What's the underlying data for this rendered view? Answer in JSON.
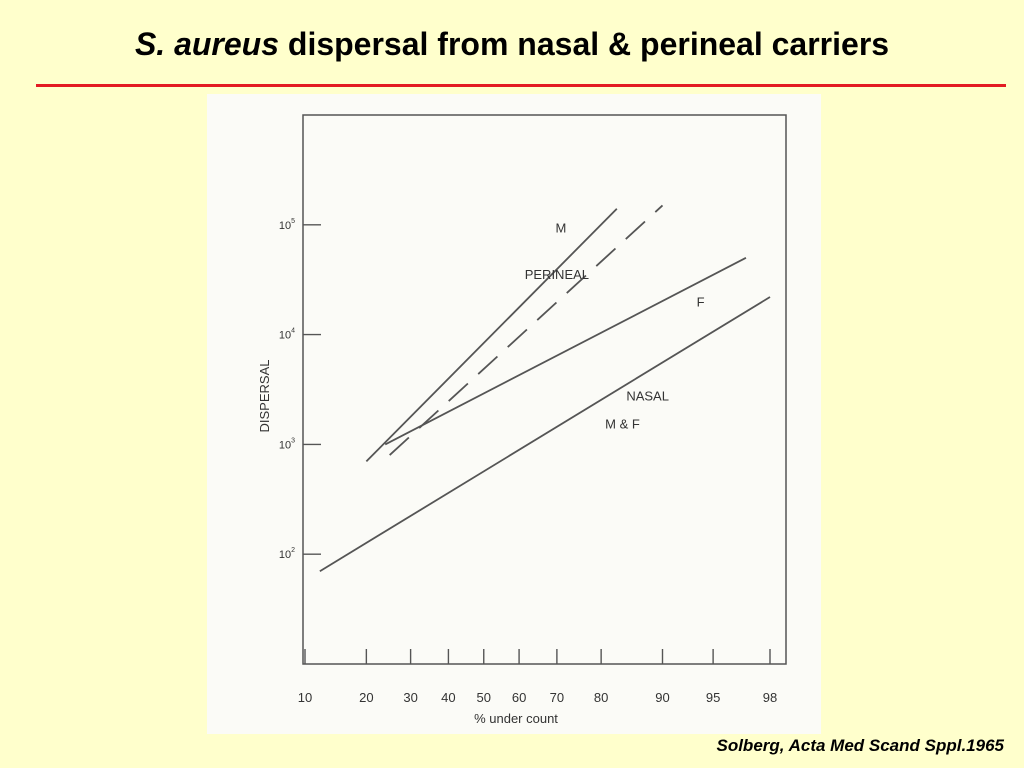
{
  "slide": {
    "title_italic": "S. aureus",
    "title_rest": " dispersal from nasal & perineal carriers",
    "citation": "Solberg, Acta Med Scand Sppl.1965",
    "rule_color": "#e31b23",
    "background_color": "#ffffcc"
  },
  "chart_data": {
    "type": "line",
    "title": "",
    "xlabel": "% under count",
    "ylabel": "DISPERSAL",
    "x_scale": "probability",
    "y_scale": "log",
    "x_ticks": [
      10,
      20,
      30,
      40,
      50,
      60,
      70,
      80,
      90,
      95,
      98
    ],
    "y_ticks": [
      {
        "value": 100,
        "base": "10",
        "exp": "2"
      },
      {
        "value": 1000,
        "base": "10",
        "exp": "3"
      },
      {
        "value": 10000,
        "base": "10",
        "exp": "4"
      },
      {
        "value": 100000,
        "base": "10",
        "exp": "5"
      }
    ],
    "xlim": [
      10,
      98
    ],
    "ylim": [
      10,
      1000000
    ],
    "grid": false,
    "series": [
      {
        "key": "perineal_m",
        "style": "solid",
        "points": [
          [
            20,
            700
          ],
          [
            83,
            140000
          ]
        ]
      },
      {
        "key": "perineal_f",
        "style": "solid",
        "points": [
          [
            24,
            1000
          ],
          [
            97,
            50000
          ]
        ]
      },
      {
        "key": "perineal_dashed",
        "style": "dashed",
        "points": [
          [
            25,
            800
          ],
          [
            90,
            150000
          ]
        ]
      },
      {
        "key": "nasal_mf",
        "style": "solid",
        "points": [
          [
            12,
            70
          ],
          [
            98,
            22000
          ]
        ]
      }
    ],
    "annotations": [
      {
        "key": "m",
        "text": "M",
        "x": 71,
        "y": 85000
      },
      {
        "key": "perineal",
        "text": "PERINEAL",
        "x": 70,
        "y": 32000
      },
      {
        "key": "f",
        "text": "F",
        "x": 94,
        "y": 18000
      },
      {
        "key": "nasal",
        "text": "NASAL",
        "x": 88,
        "y": 2500
      },
      {
        "key": "m-and-f",
        "text": "M & F",
        "x": 84,
        "y": 1400
      }
    ]
  }
}
